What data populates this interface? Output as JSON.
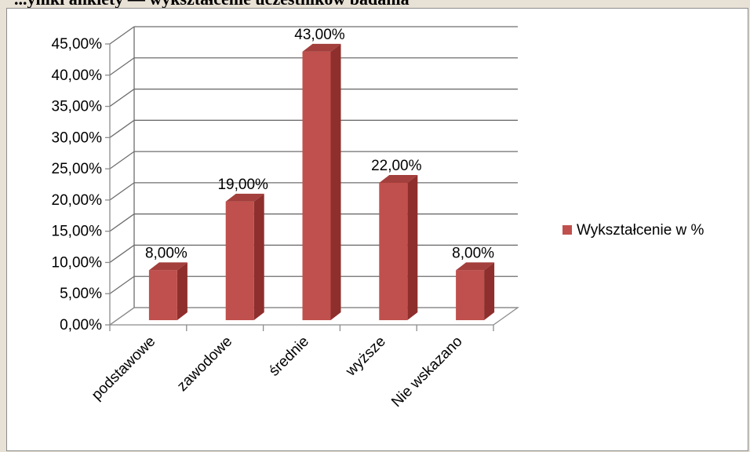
{
  "page": {
    "cropped_heading": "...yniki ankiety — wykształcenie uczestników badania"
  },
  "chart_data": {
    "type": "bar",
    "style": "3d-clustered-column",
    "title": "",
    "xlabel": "",
    "ylabel": "",
    "categories": [
      "podstawowe",
      "zawodowe",
      "średnie",
      "wyższe",
      "Nie wskazano"
    ],
    "series": [
      {
        "name": "Wykształcenie w %",
        "values": [
          8,
          19,
          43,
          22,
          8
        ],
        "data_labels": [
          "8,00%",
          "19,00%",
          "43,00%",
          "22,00%",
          "8,00%"
        ]
      }
    ],
    "ylim": [
      0,
      45
    ],
    "y_ticks": [
      0,
      5,
      10,
      15,
      20,
      25,
      30,
      35,
      40,
      45
    ],
    "y_tick_labels": [
      "0,00%",
      "5,00%",
      "10,00%",
      "15,00%",
      "20,00%",
      "25,00%",
      "30,00%",
      "35,00%",
      "40,00%",
      "45,00%"
    ],
    "grid": true,
    "legend_position": "right",
    "colors": {
      "bar_front": "#c0504d",
      "bar_side": "#8e2f2d",
      "bar_top": "#a33f3c",
      "grid": "#6e6e6e",
      "axis": "#8c8c8c"
    }
  }
}
